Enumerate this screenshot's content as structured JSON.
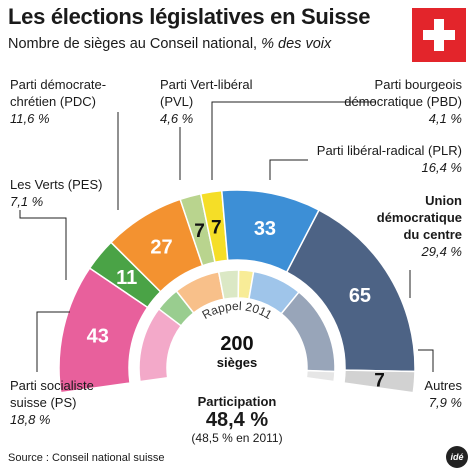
{
  "title": "Les élections législatives en Suisse",
  "subtitle_main": "Nombre de sièges au Conseil national,",
  "subtitle_italic": "% des voix",
  "flag_icon": "swiss-flag",
  "chart_data": {
    "type": "pie",
    "shape": "semicircle-parliament",
    "total_seats": 200,
    "total_label": "sièges",
    "inner_ring_label": "Rappel 2011",
    "series": [
      {
        "party_lines": [
          "Parti socialiste",
          "suisse (PS)"
        ],
        "seats": 43,
        "vote_pct": "18,8 %",
        "color": "#e8609c"
      },
      {
        "party_lines": [
          "Les Verts (PES)"
        ],
        "seats": 11,
        "vote_pct": "7,1 %",
        "color": "#4aa346"
      },
      {
        "party_lines": [
          "Parti démocrate-",
          "chrétien (PDC)"
        ],
        "seats": 27,
        "vote_pct": "11,6 %",
        "color": "#f39230"
      },
      {
        "party_lines": [
          "Parti Vert-libéral",
          "(PVL)"
        ],
        "seats": 7,
        "vote_pct": "4,6 %",
        "color": "#b9d48e"
      },
      {
        "party_lines": [
          "Parti bourgeois",
          "démocratique (PBD)"
        ],
        "seats": 7,
        "vote_pct": "4,1 %",
        "color": "#f5de27"
      },
      {
        "party_lines": [
          "Parti libéral-radical (PLR)"
        ],
        "seats": 33,
        "vote_pct": "16,4 %",
        "color": "#3d8fd6"
      },
      {
        "party_lines": [
          "Union",
          "démocratique",
          "du centre"
        ],
        "seats": 65,
        "vote_pct": "29,4 %",
        "color": "#4d6385"
      },
      {
        "party_lines": [
          "Autres"
        ],
        "seats": 7,
        "vote_pct": "7,9 %",
        "color": "#d2d2d2"
      }
    ],
    "inner_2011": [
      {
        "seats": 46,
        "color": "#f3a9c9"
      },
      {
        "seats": 15,
        "color": "#99cd8f"
      },
      {
        "seats": 28,
        "color": "#f8c08a"
      },
      {
        "seats": 12,
        "color": "#dbe8c5"
      },
      {
        "seats": 9,
        "color": "#f8ec97"
      },
      {
        "seats": 30,
        "color": "#9fc5ea"
      },
      {
        "seats": 54,
        "color": "#98a5b9"
      },
      {
        "seats": 6,
        "color": "#e6e6e6"
      }
    ]
  },
  "participation": {
    "title": "Participation",
    "value": "48,4 %",
    "previous": "(48,5 % en 2011)"
  },
  "source": "Source : Conseil national suisse",
  "logo": "idé"
}
